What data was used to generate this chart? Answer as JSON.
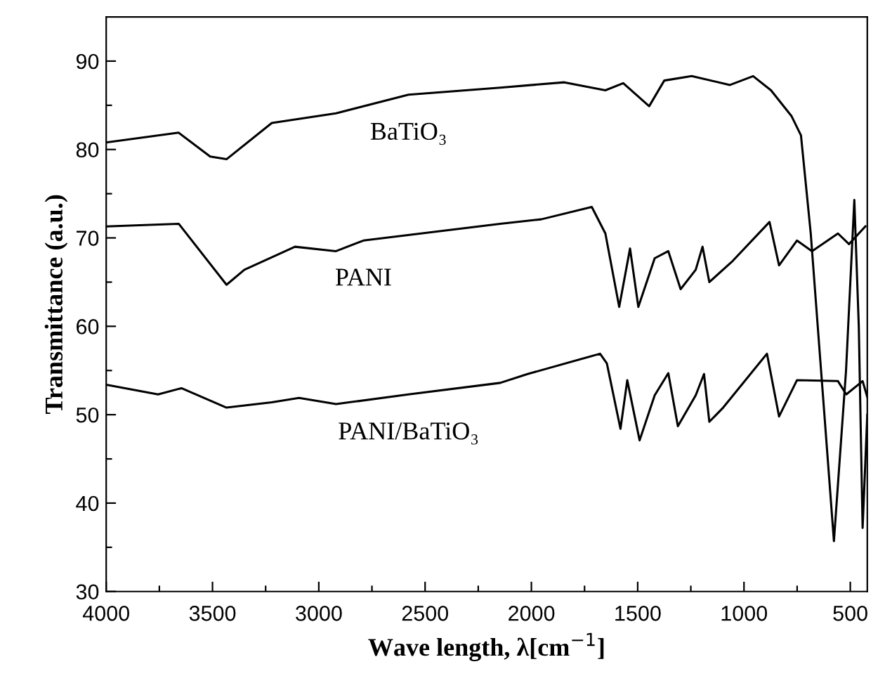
{
  "chart_data": {
    "type": "line",
    "xlabel": "Wave length, λ[cm$^{−1}$]",
    "ylabel": "Transmittance (a.u.)",
    "xlim": [
      4000,
      420
    ],
    "ylim": [
      30,
      95
    ],
    "xticks": [
      4000,
      {
        "value": 3750,
        "label": null
      },
      3500,
      {
        "value": 3250,
        "label": null
      },
      3000,
      {
        "value": 2750,
        "label": null
      },
      2500,
      {
        "value": 2250,
        "label": null
      },
      2000,
      {
        "value": 1750,
        "label": null
      },
      1500,
      {
        "value": 1250,
        "label": null
      },
      1000,
      {
        "value": 750,
        "label": null
      },
      500
    ],
    "yticks": [
      30,
      {
        "value": 35,
        "label": null
      },
      40,
      {
        "value": 45,
        "label": null
      },
      50,
      {
        "value": 55,
        "label": null
      },
      60,
      {
        "value": 65,
        "label": null
      },
      70,
      {
        "value": 75,
        "label": null
      },
      80,
      {
        "value": 85,
        "label": null
      },
      90
    ],
    "grid": false,
    "legend": false,
    "marker": "none",
    "line_style": "solid",
    "series": [
      {
        "name": "BaTiO₃",
        "color": "#000000",
        "x": [
          4000,
          3659,
          3511,
          3434,
          3221,
          2919,
          2578,
          2147,
          1845,
          1652,
          1568,
          1446,
          1375,
          1246,
          1066,
          957,
          873,
          777,
          732,
          686,
          577,
          520,
          481,
          460,
          442,
          420
        ],
        "values": [
          80.8,
          81.9,
          79.2,
          78.9,
          83.0,
          84.1,
          86.2,
          87.0,
          87.6,
          86.7,
          87.5,
          84.9,
          87.8,
          88.3,
          87.3,
          88.3,
          86.7,
          83.8,
          81.6,
          70.5,
          35.7,
          55,
          74.3,
          60,
          37.2,
          50
        ]
      },
      {
        "name": "PANI",
        "color": "#000000",
        "x": [
          4000,
          3659,
          3434,
          3350,
          3112,
          2919,
          2790,
          2147,
          1954,
          1716,
          1652,
          1587,
          1536,
          1497,
          1420,
          1356,
          1298,
          1227,
          1195,
          1163,
          1053,
          880,
          835,
          751,
          680,
          558,
          506,
          429
        ],
        "values": [
          71.3,
          71.6,
          64.7,
          66.4,
          69.0,
          68.5,
          69.7,
          71.6,
          72.1,
          73.5,
          70.5,
          62.2,
          68.8,
          62.2,
          67.7,
          68.5,
          64.2,
          66.4,
          69.0,
          65.0,
          67.4,
          71.8,
          66.9,
          69.7,
          68.5,
          70.5,
          69.3,
          71.3
        ]
      },
      {
        "name": "PANI/BaTiO₃",
        "color": "#000000",
        "x": [
          4000,
          3756,
          3646,
          3434,
          3221,
          3093,
          2919,
          2578,
          2147,
          2018,
          1677,
          1645,
          1581,
          1549,
          1491,
          1420,
          1356,
          1311,
          1227,
          1188,
          1163,
          1098,
          892,
          835,
          751,
          558,
          519,
          442,
          420
        ],
        "values": [
          53.4,
          52.3,
          53.0,
          50.8,
          51.4,
          51.9,
          51.2,
          52.3,
          53.6,
          54.6,
          56.9,
          55.8,
          48.4,
          53.9,
          47.1,
          52.2,
          54.7,
          48.7,
          52.2,
          54.6,
          49.2,
          50.8,
          56.9,
          49.8,
          53.9,
          53.8,
          52.3,
          53.8,
          52
        ]
      }
    ]
  }
}
